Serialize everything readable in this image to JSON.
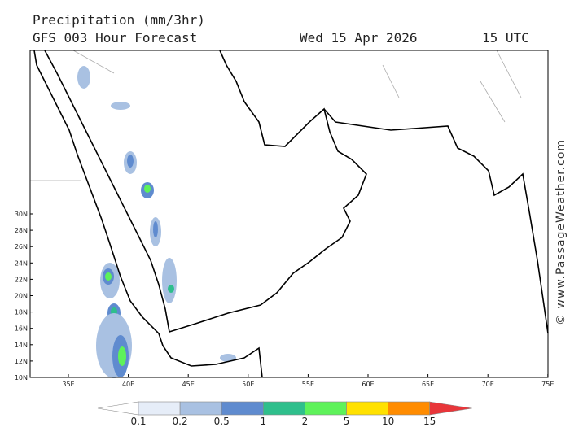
{
  "header": {
    "title": "Precipitation (mm/3hr)",
    "subtitle": "GFS 003 Hour Forecast",
    "date": "Wed 15 Apr 2026",
    "time": "15 UTC"
  },
  "map": {
    "lon_ticks": [
      "35E",
      "40E",
      "45E",
      "50E",
      "55E",
      "60E",
      "65E",
      "70E",
      "75E"
    ],
    "lat_ticks": [
      "10N",
      "12N",
      "14N",
      "16N",
      "18N",
      "20N",
      "22N",
      "24N",
      "26N",
      "28N",
      "30N"
    ]
  },
  "legend": {
    "labels": [
      "0.1",
      "0.2",
      "0.5",
      "1",
      "2",
      "5",
      "10",
      "15"
    ],
    "colors": [
      "#ffffff",
      "#e6edf8",
      "#a9c1e2",
      "#5f8bcf",
      "#2fbf8c",
      "#5ef25a",
      "#ffe100",
      "#ff8c00",
      "#e8363a"
    ]
  },
  "watermark": "© www.PassageWeather.com"
}
